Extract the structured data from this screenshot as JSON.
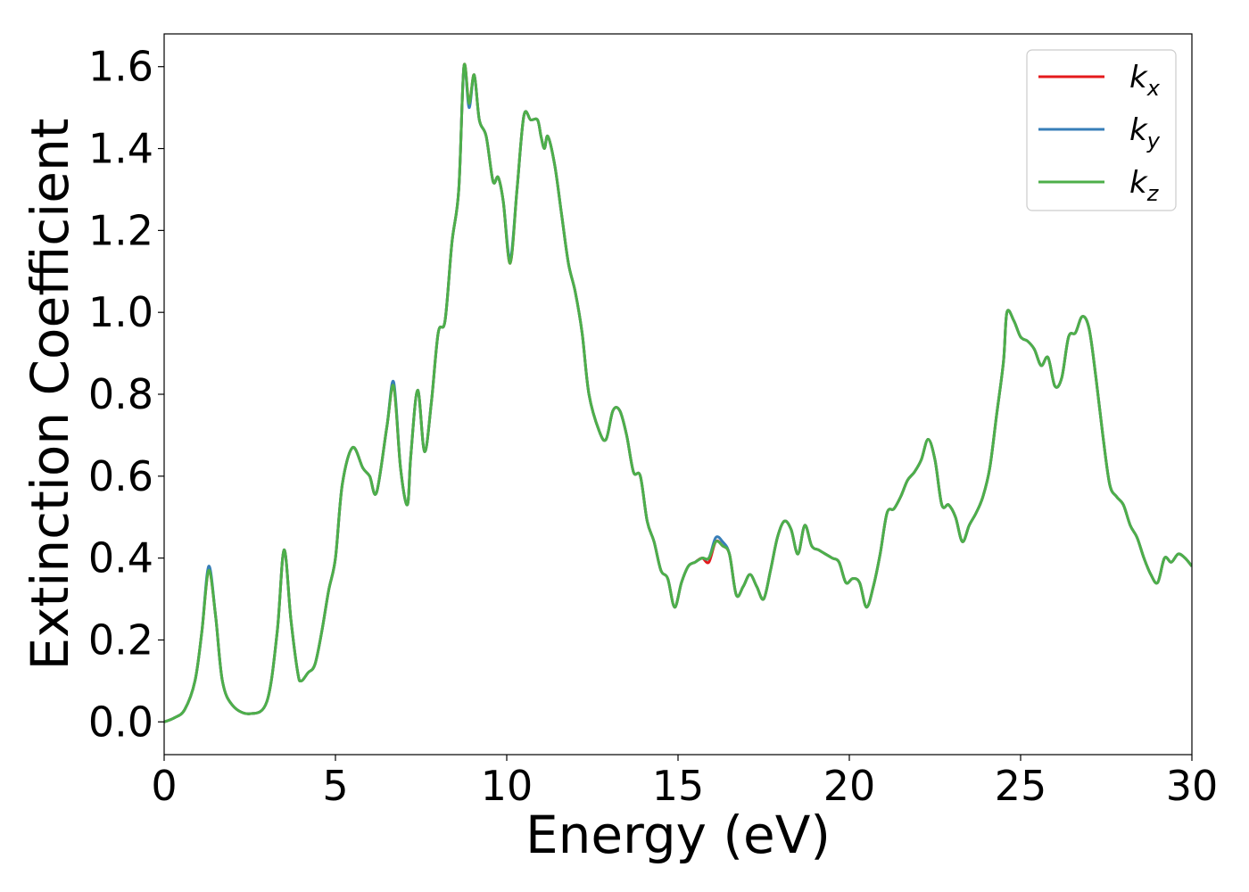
{
  "chart_data": {
    "type": "line",
    "title": "",
    "xlabel": "Energy (eV)",
    "ylabel": "Extinction Coefficient",
    "xlim": [
      0,
      30
    ],
    "ylim": [
      -0.08,
      1.68
    ],
    "xticks": [
      0,
      5,
      10,
      15,
      20,
      25,
      30
    ],
    "xtick_labels": [
      "0",
      "5",
      "10",
      "15",
      "20",
      "25",
      "30"
    ],
    "yticks": [
      0.0,
      0.2,
      0.4,
      0.6,
      0.8,
      1.0,
      1.2,
      1.4,
      1.6
    ],
    "ytick_labels": [
      "0.0",
      "0.2",
      "0.4",
      "0.6",
      "0.8",
      "1.0",
      "1.2",
      "1.4",
      "1.6"
    ],
    "grid": false,
    "legend_position": "top-right",
    "x": [
      0.0,
      0.3,
      0.6,
      0.9,
      1.1,
      1.3,
      1.5,
      1.7,
      2.0,
      2.5,
      3.0,
      3.3,
      3.5,
      3.7,
      3.9,
      4.0,
      4.2,
      4.4,
      4.6,
      4.8,
      5.0,
      5.2,
      5.5,
      5.8,
      6.0,
      6.2,
      6.5,
      6.7,
      6.9,
      7.1,
      7.2,
      7.4,
      7.6,
      7.8,
      8.0,
      8.2,
      8.4,
      8.6,
      8.75,
      8.9,
      9.05,
      9.2,
      9.4,
      9.6,
      9.75,
      9.9,
      10.1,
      10.3,
      10.5,
      10.7,
      10.9,
      11.0,
      11.1,
      11.2,
      11.4,
      11.6,
      11.8,
      12.0,
      12.2,
      12.4,
      12.7,
      12.9,
      13.1,
      13.3,
      13.5,
      13.7,
      13.9,
      14.1,
      14.3,
      14.5,
      14.7,
      14.9,
      15.1,
      15.3,
      15.5,
      15.7,
      15.9,
      16.1,
      16.3,
      16.5,
      16.7,
      16.9,
      17.1,
      17.3,
      17.5,
      17.7,
      17.9,
      18.1,
      18.3,
      18.5,
      18.7,
      18.9,
      19.1,
      19.3,
      19.5,
      19.7,
      19.9,
      20.1,
      20.3,
      20.5,
      20.7,
      20.9,
      21.1,
      21.3,
      21.5,
      21.7,
      21.9,
      22.1,
      22.3,
      22.5,
      22.7,
      22.9,
      23.1,
      23.3,
      23.5,
      23.7,
      23.9,
      24.1,
      24.3,
      24.5,
      24.6,
      24.8,
      25.0,
      25.2,
      25.4,
      25.6,
      25.8,
      26.0,
      26.2,
      26.4,
      26.6,
      26.8,
      27.0,
      27.2,
      27.4,
      27.6,
      27.8,
      28.0,
      28.2,
      28.4,
      28.6,
      28.8,
      29.0,
      29.2,
      29.4,
      29.6,
      29.8,
      30.0
    ],
    "series": [
      {
        "name": "k_x",
        "color": "#e41a1c",
        "values": [
          0.0,
          0.01,
          0.03,
          0.1,
          0.22,
          0.37,
          0.26,
          0.1,
          0.04,
          0.02,
          0.05,
          0.22,
          0.42,
          0.25,
          0.12,
          0.1,
          0.12,
          0.14,
          0.22,
          0.32,
          0.4,
          0.58,
          0.67,
          0.62,
          0.6,
          0.56,
          0.72,
          0.82,
          0.62,
          0.53,
          0.65,
          0.81,
          0.66,
          0.78,
          0.95,
          0.98,
          1.17,
          1.3,
          1.6,
          1.51,
          1.58,
          1.47,
          1.43,
          1.32,
          1.33,
          1.27,
          1.12,
          1.3,
          1.48,
          1.47,
          1.47,
          1.43,
          1.4,
          1.43,
          1.36,
          1.24,
          1.12,
          1.05,
          0.95,
          0.8,
          0.71,
          0.69,
          0.76,
          0.76,
          0.7,
          0.61,
          0.6,
          0.49,
          0.44,
          0.37,
          0.35,
          0.28,
          0.34,
          0.38,
          0.39,
          0.4,
          0.39,
          0.44,
          0.43,
          0.41,
          0.31,
          0.33,
          0.36,
          0.33,
          0.3,
          0.37,
          0.45,
          0.49,
          0.47,
          0.41,
          0.48,
          0.43,
          0.42,
          0.41,
          0.4,
          0.39,
          0.34,
          0.35,
          0.34,
          0.28,
          0.33,
          0.41,
          0.51,
          0.52,
          0.55,
          0.59,
          0.61,
          0.64,
          0.69,
          0.64,
          0.53,
          0.53,
          0.5,
          0.44,
          0.48,
          0.51,
          0.55,
          0.62,
          0.75,
          0.88,
          1.0,
          0.98,
          0.94,
          0.93,
          0.91,
          0.87,
          0.89,
          0.82,
          0.84,
          0.94,
          0.95,
          0.99,
          0.96,
          0.84,
          0.7,
          0.58,
          0.55,
          0.53,
          0.48,
          0.45,
          0.4,
          0.36,
          0.34,
          0.4,
          0.39,
          0.41,
          0.4,
          0.38
        ]
      },
      {
        "name": "k_y",
        "color": "#377eb8",
        "values": [
          0.0,
          0.01,
          0.03,
          0.1,
          0.22,
          0.38,
          0.26,
          0.1,
          0.04,
          0.02,
          0.05,
          0.22,
          0.42,
          0.25,
          0.12,
          0.1,
          0.12,
          0.14,
          0.22,
          0.32,
          0.4,
          0.58,
          0.67,
          0.62,
          0.6,
          0.56,
          0.72,
          0.83,
          0.62,
          0.53,
          0.65,
          0.81,
          0.66,
          0.78,
          0.95,
          0.98,
          1.17,
          1.3,
          1.6,
          1.5,
          1.58,
          1.47,
          1.43,
          1.32,
          1.33,
          1.27,
          1.13,
          1.3,
          1.48,
          1.47,
          1.47,
          1.43,
          1.4,
          1.43,
          1.36,
          1.24,
          1.12,
          1.05,
          0.95,
          0.8,
          0.71,
          0.69,
          0.76,
          0.76,
          0.7,
          0.61,
          0.6,
          0.49,
          0.44,
          0.37,
          0.35,
          0.28,
          0.34,
          0.38,
          0.39,
          0.4,
          0.4,
          0.45,
          0.44,
          0.41,
          0.31,
          0.33,
          0.36,
          0.33,
          0.3,
          0.37,
          0.45,
          0.49,
          0.47,
          0.41,
          0.48,
          0.43,
          0.42,
          0.41,
          0.4,
          0.39,
          0.34,
          0.35,
          0.34,
          0.28,
          0.33,
          0.41,
          0.51,
          0.52,
          0.55,
          0.59,
          0.61,
          0.64,
          0.69,
          0.64,
          0.53,
          0.53,
          0.5,
          0.44,
          0.48,
          0.51,
          0.55,
          0.62,
          0.75,
          0.88,
          1.0,
          0.98,
          0.94,
          0.93,
          0.91,
          0.87,
          0.89,
          0.82,
          0.84,
          0.94,
          0.95,
          0.99,
          0.96,
          0.84,
          0.7,
          0.58,
          0.55,
          0.53,
          0.48,
          0.45,
          0.4,
          0.36,
          0.34,
          0.4,
          0.39,
          0.41,
          0.4,
          0.38
        ]
      },
      {
        "name": "k_z",
        "color": "#4daf4a",
        "values": [
          0.0,
          0.01,
          0.03,
          0.1,
          0.22,
          0.37,
          0.26,
          0.1,
          0.04,
          0.02,
          0.05,
          0.22,
          0.42,
          0.25,
          0.12,
          0.1,
          0.12,
          0.14,
          0.22,
          0.32,
          0.4,
          0.58,
          0.67,
          0.62,
          0.6,
          0.56,
          0.72,
          0.82,
          0.62,
          0.53,
          0.65,
          0.81,
          0.66,
          0.78,
          0.95,
          0.98,
          1.17,
          1.3,
          1.6,
          1.51,
          1.58,
          1.47,
          1.43,
          1.32,
          1.33,
          1.27,
          1.12,
          1.3,
          1.48,
          1.47,
          1.47,
          1.43,
          1.4,
          1.43,
          1.36,
          1.24,
          1.12,
          1.05,
          0.95,
          0.8,
          0.71,
          0.69,
          0.76,
          0.76,
          0.7,
          0.61,
          0.6,
          0.49,
          0.44,
          0.37,
          0.35,
          0.28,
          0.34,
          0.38,
          0.39,
          0.4,
          0.4,
          0.44,
          0.43,
          0.41,
          0.31,
          0.33,
          0.36,
          0.33,
          0.3,
          0.37,
          0.45,
          0.49,
          0.47,
          0.41,
          0.48,
          0.43,
          0.42,
          0.41,
          0.4,
          0.39,
          0.34,
          0.35,
          0.34,
          0.28,
          0.33,
          0.41,
          0.51,
          0.52,
          0.55,
          0.59,
          0.61,
          0.64,
          0.69,
          0.64,
          0.53,
          0.53,
          0.5,
          0.44,
          0.48,
          0.51,
          0.55,
          0.62,
          0.75,
          0.88,
          1.0,
          0.98,
          0.94,
          0.93,
          0.91,
          0.87,
          0.89,
          0.82,
          0.84,
          0.94,
          0.95,
          0.99,
          0.96,
          0.84,
          0.7,
          0.58,
          0.55,
          0.53,
          0.48,
          0.45,
          0.4,
          0.36,
          0.34,
          0.4,
          0.39,
          0.41,
          0.4,
          0.38
        ]
      }
    ],
    "legend": [
      {
        "base": "k",
        "sub": "x",
        "color": "#e41a1c"
      },
      {
        "base": "k",
        "sub": "y",
        "color": "#377eb8"
      },
      {
        "base": "k",
        "sub": "z",
        "color": "#4daf4a"
      }
    ]
  }
}
